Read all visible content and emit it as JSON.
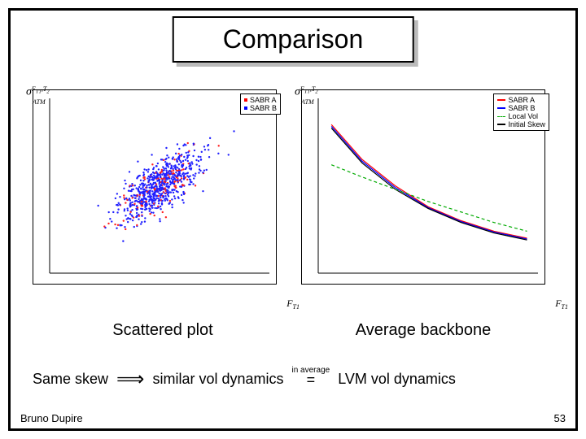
{
  "title": "Comparison",
  "scatter_chart": {
    "type": "scatter",
    "y_axis_label": "σ",
    "y_axis_sub": "ATM",
    "y_axis_sup": "F_T1, T2",
    "x_axis_label": "F_T1",
    "legend": [
      {
        "label": "SABR A",
        "color": "#ff0000"
      },
      {
        "label": "SABR B",
        "color": "#0000ff"
      }
    ],
    "n_points": 800,
    "center_x": 0.5,
    "center_y": 0.5,
    "spread_x": 0.35,
    "spread_y": 0.3,
    "correlation": -0.7,
    "colors": {
      "a": "#ff2020",
      "b": "#2020ff"
    },
    "marker_size": 1.2,
    "background_color": "#ffffff",
    "border_color": "#000000"
  },
  "line_chart": {
    "type": "line",
    "y_axis_label": "σ",
    "y_axis_sub": "ATM",
    "y_axis_sup": "F_T1, T2",
    "x_axis_label": "F_T1",
    "legend": [
      {
        "label": "SABR A",
        "color": "#ff0000",
        "dash": "solid"
      },
      {
        "label": "SABR B",
        "color": "#0000ff",
        "dash": "solid"
      },
      {
        "label": "Local Vol",
        "color": "#00aa00",
        "dash": "dash"
      },
      {
        "label": "Initial Skew",
        "color": "#000000",
        "dash": "solid"
      }
    ],
    "series": [
      {
        "color": "#ff0000",
        "points": [
          [
            0.06,
            0.85
          ],
          [
            0.2,
            0.65
          ],
          [
            0.35,
            0.5
          ],
          [
            0.5,
            0.38
          ],
          [
            0.65,
            0.3
          ],
          [
            0.8,
            0.24
          ],
          [
            0.95,
            0.2
          ]
        ],
        "dash": "none",
        "width": 1.2
      },
      {
        "color": "#0000ff",
        "points": [
          [
            0.06,
            0.84
          ],
          [
            0.2,
            0.64
          ],
          [
            0.35,
            0.49
          ],
          [
            0.5,
            0.375
          ],
          [
            0.65,
            0.295
          ],
          [
            0.8,
            0.235
          ],
          [
            0.95,
            0.195
          ]
        ],
        "dash": "none",
        "width": 1.2
      },
      {
        "color": "#000000",
        "points": [
          [
            0.06,
            0.83
          ],
          [
            0.2,
            0.63
          ],
          [
            0.35,
            0.48
          ],
          [
            0.5,
            0.37
          ],
          [
            0.65,
            0.29
          ],
          [
            0.8,
            0.23
          ],
          [
            0.95,
            0.19
          ]
        ],
        "dash": "none",
        "width": 1.2
      },
      {
        "color": "#00aa00",
        "points": [
          [
            0.06,
            0.62
          ],
          [
            0.2,
            0.55
          ],
          [
            0.35,
            0.48
          ],
          [
            0.5,
            0.41
          ],
          [
            0.65,
            0.35
          ],
          [
            0.8,
            0.29
          ],
          [
            0.95,
            0.24
          ]
        ],
        "dash": "4,3",
        "width": 1.2
      }
    ],
    "background_color": "#ffffff",
    "border_color": "#000000"
  },
  "caption_left": "Scattered plot",
  "caption_right": "Average backbone",
  "formula": {
    "part1": "Same skew",
    "arrow": "⟹",
    "part2": "similar vol dynamics",
    "small": "in average",
    "eq": "=",
    "part3": "LVM vol dynamics"
  },
  "footer": {
    "author": "Bruno Dupire",
    "page": "53"
  }
}
